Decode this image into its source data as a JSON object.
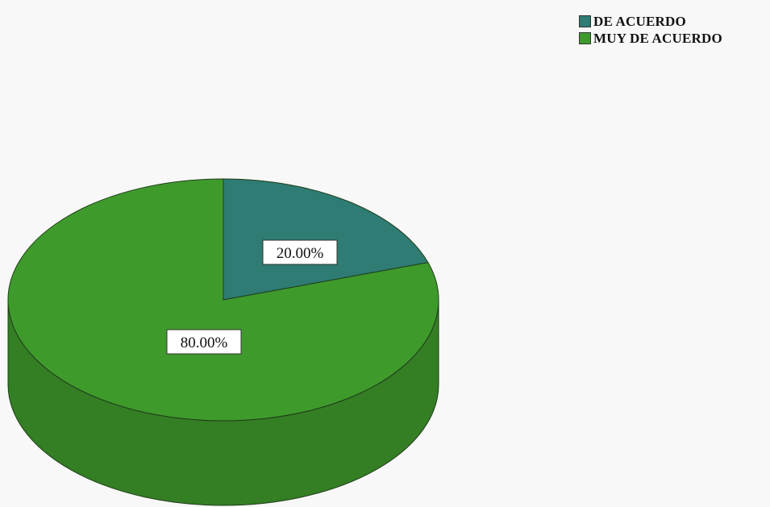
{
  "chart_data": {
    "type": "pie",
    "three_d": true,
    "slices": [
      {
        "label": "DE ACUERDO",
        "value": 20.0,
        "display": "20.00%",
        "color": "#2e7c73"
      },
      {
        "label": "MUY DE ACUERDO",
        "value": 80.0,
        "display": "80.00%",
        "color": "#3f9a2c"
      }
    ],
    "legend_position": "top-right",
    "title": ""
  }
}
